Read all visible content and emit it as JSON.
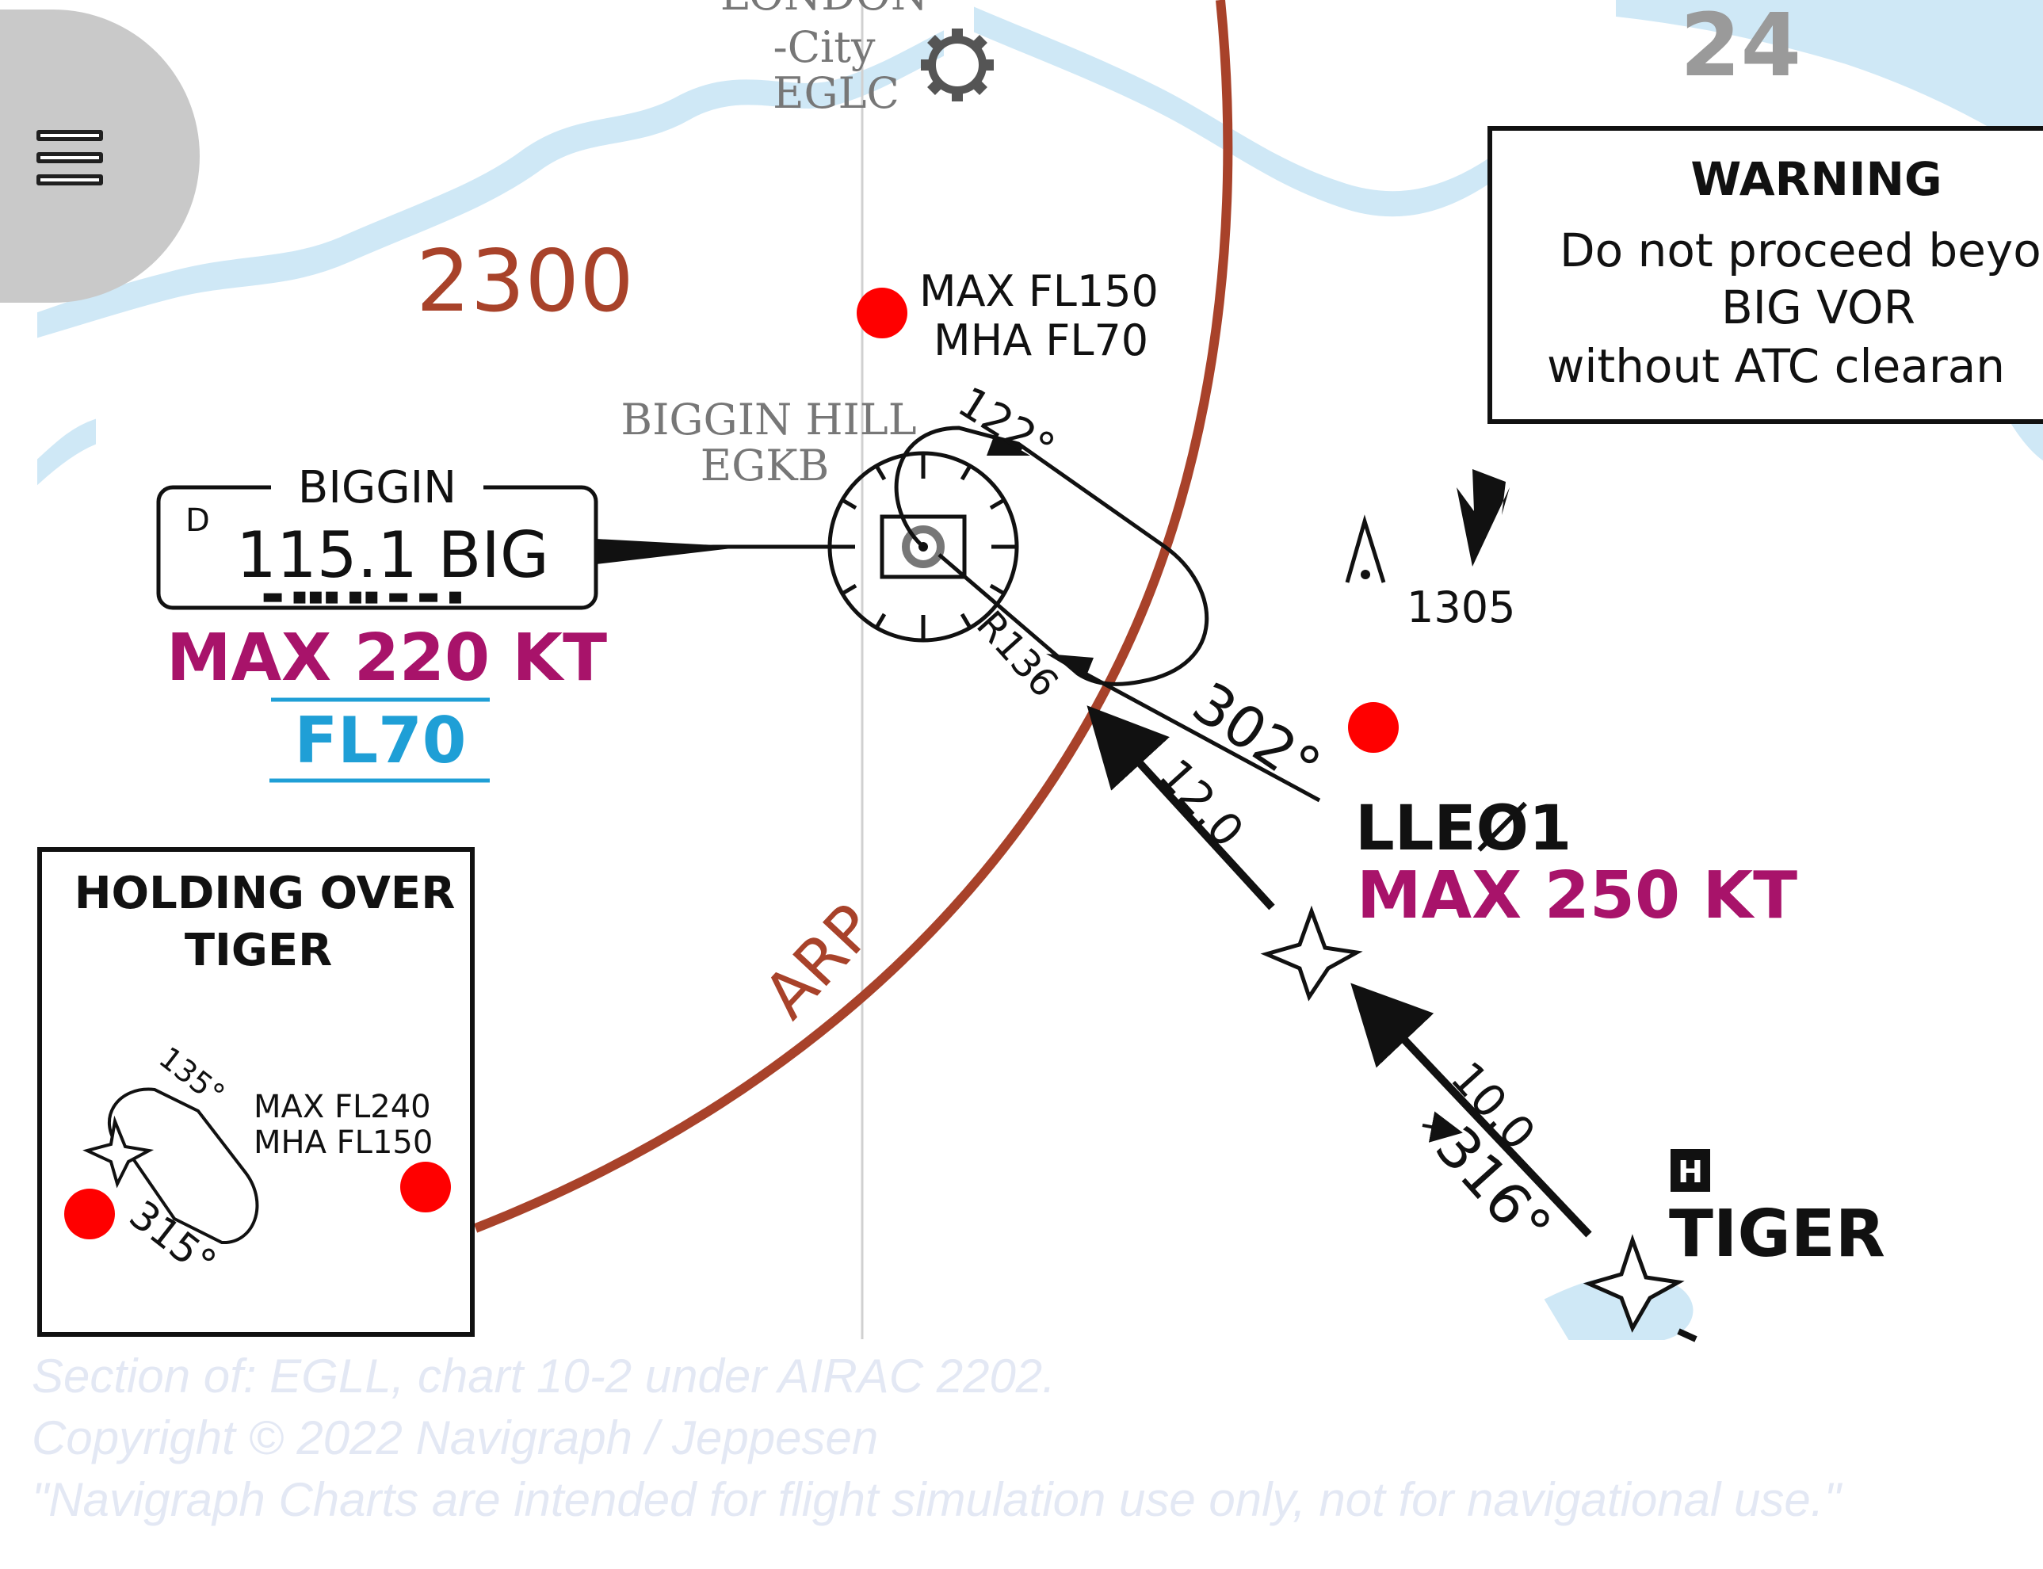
{
  "map": {
    "airport_london_city": {
      "name": "LONDON",
      "suffix": "-City",
      "code": "EGLC"
    },
    "sector_number": "24",
    "warning": {
      "title": "WARNING",
      "line1": "Do not proceed beyo",
      "line2": "BIG VOR",
      "line3": "without ATC clearan"
    },
    "altitude_label": "2300",
    "biggin_vor": {
      "service_class": "D",
      "name": "BIGGIN",
      "frequency_ident": "115.1 BIG",
      "morse": "▬ ▪▪▪  ▪▪  ▬ ▬ ▪"
    },
    "biggin_speed_limit": "MAX 220 KT",
    "biggin_altitude_limit": "FL70",
    "airport_biggin_hill": {
      "name": "BIGGIN HILL",
      "code": "EGKB"
    },
    "big_holding": {
      "max": "MAX FL150",
      "mha": "MHA FL70",
      "inbound_course": "122°",
      "outbound_course": "302°",
      "radial": "R136"
    },
    "obstacle_elevation": "1305",
    "leg_distance_to_big": "12.0",
    "leg_distance_to_lle01": "10.0",
    "leg_course": "316°",
    "waypoint_lle01": {
      "name": "LLEØ1",
      "speed_limit": "MAX 250 KT"
    },
    "waypoint_tiger": {
      "name": "TIGER",
      "symbol_letter": "H"
    },
    "arp_label": "ARP",
    "tiger_inset": {
      "title_line1": "HOLDING OVER",
      "title_line2": "TIGER",
      "course_a": "135°",
      "course_b": "315°",
      "max": "MAX FL240",
      "mha": "MHA FL150"
    },
    "colors": {
      "arp_circle": "#a8422a",
      "speed_limit": "#a8136a",
      "altitude_limit": "#1f9fd6",
      "water": "#cfe8f6",
      "marker": "#ff0000",
      "grey_text": "#777777"
    }
  },
  "menu": {
    "icon": "hamburger-menu-icon"
  },
  "footer": {
    "line1": "Section of: EGLL, chart 10-2 under AIRAC 2202.",
    "line2": "Copyright © 2022 Navigraph / Jeppesen",
    "line3": "\"Navigraph Charts are intended for flight simulation use only, not for navigational use.\""
  }
}
